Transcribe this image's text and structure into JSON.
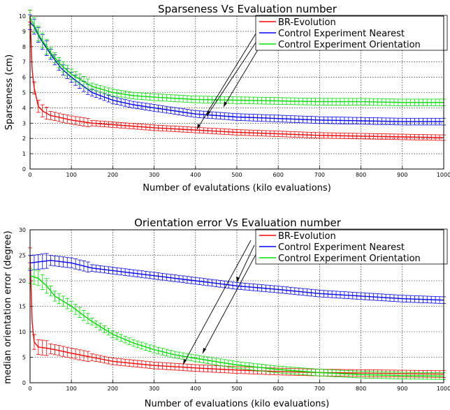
{
  "chart_data": [
    {
      "type": "line",
      "title": "Sparseness Vs Evaluation number",
      "xlabel": "Number of evalutations (kilo evaluations)",
      "ylabel": "Sparseness (cm)",
      "xlim": [
        0,
        1000
      ],
      "ylim": [
        0,
        10
      ],
      "xticks": [
        0,
        100,
        200,
        300,
        400,
        500,
        600,
        700,
        800,
        900,
        1000
      ],
      "yticks": [
        0,
        1,
        2,
        3,
        4,
        5,
        6,
        7,
        8,
        9,
        10
      ],
      "grid": true,
      "legend_position": "top-right",
      "series": [
        {
          "name": "BR-Evolution",
          "color": "#ff0000",
          "x": [
            0,
            5,
            10,
            20,
            30,
            50,
            75,
            100,
            150,
            200,
            250,
            300,
            400,
            500,
            600,
            700,
            800,
            900,
            1000
          ],
          "y": [
            10,
            6.5,
            5.3,
            4.1,
            3.8,
            3.5,
            3.35,
            3.2,
            3.0,
            2.9,
            2.8,
            2.7,
            2.55,
            2.4,
            2.3,
            2.2,
            2.15,
            2.1,
            2.05
          ]
        },
        {
          "name": "Control Experiment Nearest",
          "color": "#0000ff",
          "x": [
            0,
            10,
            25,
            50,
            75,
            100,
            150,
            200,
            250,
            300,
            400,
            500,
            600,
            700,
            800,
            900,
            1000
          ],
          "y": [
            9.6,
            9.3,
            8.5,
            7.5,
            6.6,
            6.0,
            5.0,
            4.5,
            4.2,
            4.0,
            3.6,
            3.4,
            3.3,
            3.2,
            3.15,
            3.1,
            3.1
          ]
        },
        {
          "name": "Control Experiment Orientation",
          "color": "#00e000",
          "x": [
            0,
            10,
            25,
            50,
            75,
            100,
            150,
            200,
            250,
            300,
            400,
            500,
            600,
            700,
            800,
            900,
            1000
          ],
          "y": [
            9.9,
            9.4,
            8.6,
            7.6,
            6.8,
            6.2,
            5.4,
            5.0,
            4.8,
            4.7,
            4.55,
            4.5,
            4.45,
            4.4,
            4.4,
            4.35,
            4.35
          ]
        }
      ]
    },
    {
      "type": "line",
      "title": "Orientation error Vs Evaluation number",
      "xlabel": "Number of evaluations (kilo evaluations)",
      "ylabel": "median orientation error (degree)",
      "xlim": [
        0,
        1000
      ],
      "ylim": [
        0,
        30
      ],
      "xticks": [
        0,
        100,
        200,
        300,
        400,
        500,
        600,
        700,
        800,
        900,
        1000
      ],
      "yticks": [
        0,
        5,
        10,
        15,
        20,
        25,
        30
      ],
      "grid": true,
      "legend_position": "top-right",
      "series": [
        {
          "name": "BR-Evolution",
          "color": "#ff0000",
          "x": [
            0,
            5,
            10,
            20,
            40,
            60,
            100,
            150,
            200,
            250,
            300,
            400,
            500,
            600,
            700,
            800,
            900,
            1000
          ],
          "y": [
            25,
            12,
            8,
            7,
            6.8,
            6.5,
            5.8,
            5.0,
            4.2,
            3.8,
            3.4,
            2.9,
            2.5,
            2.2,
            2.0,
            1.9,
            1.8,
            1.7
          ]
        },
        {
          "name": "Control Experiment Nearest",
          "color": "#0000ff",
          "x": [
            0,
            50,
            100,
            150,
            200,
            250,
            300,
            350,
            400,
            450,
            500,
            600,
            700,
            800,
            900,
            1000
          ],
          "y": [
            23.5,
            24,
            23.5,
            22.5,
            22,
            21.5,
            21,
            20.5,
            20,
            19.5,
            19,
            18.3,
            17.5,
            17,
            16.5,
            16.2
          ]
        },
        {
          "name": "Control Experiment Orientation",
          "color": "#00e000",
          "x": [
            0,
            20,
            40,
            60,
            100,
            150,
            200,
            250,
            300,
            350,
            400,
            500,
            600,
            700,
            800,
            900,
            1000
          ],
          "y": [
            21,
            20.5,
            19,
            17,
            15,
            12,
            9.5,
            7.8,
            6.5,
            5.5,
            4.8,
            3.5,
            2.6,
            2.0,
            1.6,
            1.4,
            1.3
          ]
        }
      ]
    }
  ]
}
